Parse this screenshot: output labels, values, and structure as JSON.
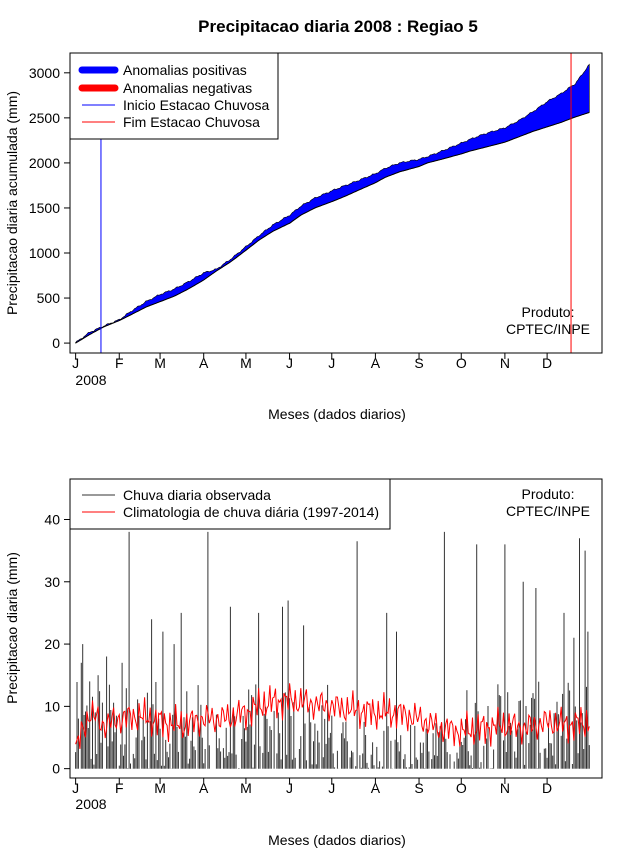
{
  "chart_data": [
    {
      "type": "area",
      "title": "Precipitacao diaria 2008 : Regiao 5",
      "xlabel": "Meses (dados diarios)",
      "ylabel": "Precipitacao diaria acumulada (mm)",
      "x_tick_labels": [
        "J",
        "F",
        "M",
        "A",
        "M",
        "J",
        "J",
        "A",
        "S",
        "O",
        "N",
        "D"
      ],
      "year_label": "2008",
      "y_ticks": [
        0,
        500,
        1000,
        1500,
        2000,
        2500,
        3000
      ],
      "xlim_days": [
        -4,
        374
      ],
      "ylim": [
        -110,
        3220
      ],
      "legend": [
        {
          "label": "Anomalias positivas",
          "color": "#0000ff",
          "style": "thick"
        },
        {
          "label": "Anomalias negativas",
          "color": "#ff0000",
          "style": "thick"
        },
        {
          "label": "Inicio Estacao Chuvosa",
          "color": "#0000ff",
          "style": "thin"
        },
        {
          "label": "Fim Estacao Chuvosa",
          "color": "#ff0000",
          "style": "thin"
        }
      ],
      "annotation": [
        "Produto:",
        "CPTEC/INPE"
      ],
      "rainy_season_start_day": 18,
      "rainy_season_end_day": 352,
      "series": [
        {
          "name": "Climatologia acumulada",
          "days": [
            0,
            10,
            20,
            31,
            40,
            50,
            60,
            70,
            80,
            91,
            100,
            110,
            121,
            130,
            140,
            152,
            160,
            170,
            182,
            190,
            200,
            213,
            220,
            230,
            244,
            250,
            260,
            274,
            280,
            290,
            305,
            315,
            325,
            335,
            345,
            355,
            365
          ],
          "values": [
            0,
            95,
            180,
            250,
            320,
            400,
            460,
            520,
            600,
            700,
            800,
            900,
            1030,
            1140,
            1240,
            1330,
            1420,
            1500,
            1570,
            1620,
            1690,
            1780,
            1840,
            1900,
            1960,
            2000,
            2040,
            2100,
            2130,
            2170,
            2230,
            2290,
            2350,
            2400,
            2450,
            2510,
            2560
          ]
        },
        {
          "name": "Observado acumulado",
          "days": [
            0,
            10,
            20,
            31,
            40,
            50,
            60,
            70,
            80,
            91,
            100,
            110,
            121,
            130,
            140,
            152,
            160,
            170,
            182,
            190,
            200,
            213,
            220,
            230,
            244,
            250,
            260,
            274,
            280,
            290,
            305,
            315,
            325,
            335,
            345,
            355,
            365
          ],
          "values": [
            5,
            120,
            190,
            260,
            360,
            460,
            540,
            600,
            680,
            780,
            820,
            930,
            1070,
            1190,
            1310,
            1420,
            1520,
            1610,
            1690,
            1740,
            1800,
            1880,
            1940,
            2000,
            2040,
            2070,
            2130,
            2220,
            2260,
            2320,
            2390,
            2470,
            2570,
            2680,
            2770,
            2880,
            3090
          ]
        }
      ]
    },
    {
      "type": "line",
      "xlabel": "Meses (dados diarios)",
      "ylabel": "Precipitacao diaria (mm)",
      "x_tick_labels": [
        "J",
        "F",
        "M",
        "A",
        "M",
        "J",
        "J",
        "A",
        "S",
        "O",
        "N",
        "D"
      ],
      "year_label": "2008",
      "y_ticks": [
        0,
        10,
        20,
        30,
        40
      ],
      "xlim_days": [
        -4,
        374
      ],
      "ylim": [
        -1.5,
        46.5
      ],
      "legend": [
        {
          "label": "Chuva diaria observada",
          "color": "#333333"
        },
        {
          "label": "Climatologia de chuva diária (1997-2014)",
          "color": "#ff0000"
        }
      ],
      "annotation": [
        "Produto:",
        "CPTEC/INPE"
      ],
      "peaks": [
        {
          "day": 4,
          "value": 17
        },
        {
          "day": 5,
          "value": 20
        },
        {
          "day": 10,
          "value": 14
        },
        {
          "day": 16,
          "value": 15
        },
        {
          "day": 22,
          "value": 18
        },
        {
          "day": 33,
          "value": 17
        },
        {
          "day": 38,
          "value": 38
        },
        {
          "day": 54,
          "value": 24
        },
        {
          "day": 62,
          "value": 22
        },
        {
          "day": 70,
          "value": 20
        },
        {
          "day": 75,
          "value": 25
        },
        {
          "day": 94,
          "value": 38
        },
        {
          "day": 110,
          "value": 26
        },
        {
          "day": 130,
          "value": 25
        },
        {
          "day": 147,
          "value": 26
        },
        {
          "day": 151,
          "value": 27
        },
        {
          "day": 162,
          "value": 23
        },
        {
          "day": 200,
          "value": 36.5
        },
        {
          "day": 221,
          "value": 25
        },
        {
          "day": 228,
          "value": 22
        },
        {
          "day": 262,
          "value": 38
        },
        {
          "day": 285,
          "value": 36
        },
        {
          "day": 305,
          "value": 36
        },
        {
          "day": 318,
          "value": 30
        },
        {
          "day": 327,
          "value": 29
        },
        {
          "day": 347,
          "value": 25
        },
        {
          "day": 354,
          "value": 21
        },
        {
          "day": 358,
          "value": 37
        },
        {
          "day": 362,
          "value": 35
        },
        {
          "day": 364,
          "value": 22
        }
      ],
      "climatology": {
        "days": [
          0,
          10,
          20,
          31,
          45,
          60,
          75,
          91,
          105,
          121,
          135,
          152,
          165,
          182,
          196,
          213,
          228,
          244,
          258,
          274,
          289,
          305,
          320,
          335,
          350,
          365
        ],
        "values": [
          3,
          9,
          7,
          8,
          8.5,
          7.5,
          7,
          8,
          8,
          9,
          10.5,
          11,
          10.5,
          10,
          9.5,
          9,
          9,
          8,
          6.5,
          6,
          6.5,
          7,
          6.5,
          7.5,
          7,
          7.5
        ]
      }
    }
  ]
}
